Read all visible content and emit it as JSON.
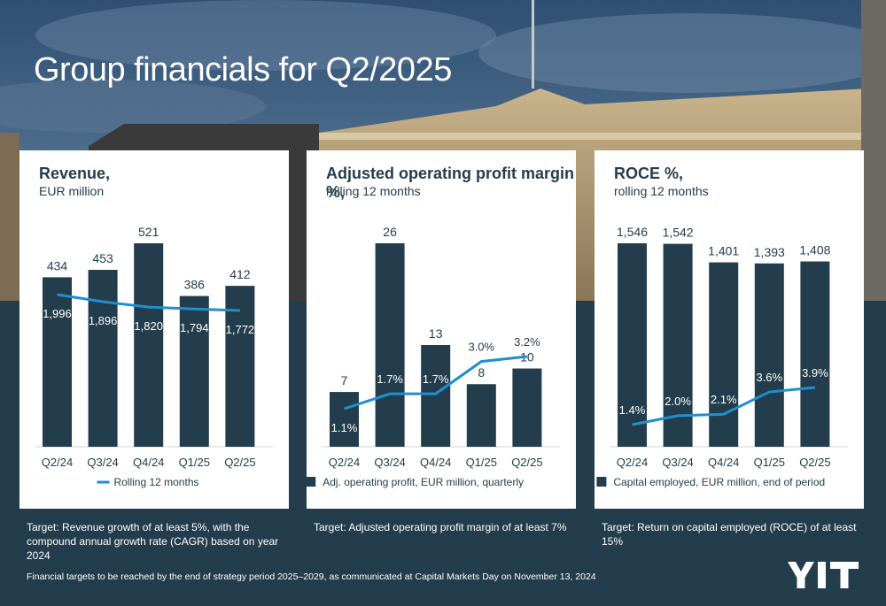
{
  "page": {
    "title": "Group financials for Q2/2025"
  },
  "colors": {
    "dark": "#243d4c",
    "line": "#1e8fd0",
    "white": "#ffffff"
  },
  "chart_data": [
    {
      "type": "bar",
      "title": "Revenue,",
      "subtitle": "EUR million",
      "categories": [
        "Q2/24",
        "Q3/24",
        "Q4/24",
        "Q1/25",
        "Q2/25"
      ],
      "series": [
        {
          "type": "bar",
          "values": [
            434,
            453,
            521,
            386,
            412
          ]
        },
        {
          "name": "Rolling 12 months",
          "type": "line",
          "values": [
            1996,
            1896,
            1820,
            1794,
            1772
          ]
        }
      ],
      "legend": "Rolling 12 months",
      "legend_marker": "line",
      "target": "Target: Revenue growth of at least 5%, with the compound annual growth rate (CAGR) based on year 2024"
    },
    {
      "type": "bar",
      "title": "Adjusted operating profit margin %,",
      "subtitle": "rolling 12 months",
      "categories": [
        "Q2/24",
        "Q3/24",
        "Q4/24",
        "Q1/25",
        "Q2/25"
      ],
      "series": [
        {
          "name": "Adj. operating profit, EUR million, quarterly",
          "type": "bar",
          "values": [
            7,
            26,
            13,
            8,
            10
          ]
        },
        {
          "type": "line",
          "values": [
            1.1,
            1.7,
            1.7,
            3.0,
            3.2
          ],
          "labels": [
            "1.1%",
            "1.7%",
            "1.7%",
            "3.0%",
            "3.2%"
          ]
        }
      ],
      "legend": "Adj. operating profit, EUR million, quarterly",
      "legend_marker": "square",
      "target": "Target: Adjusted operating profit margin of at least 7%"
    },
    {
      "type": "bar",
      "title": "ROCE %,",
      "subtitle": "rolling 12 months",
      "categories": [
        "Q2/24",
        "Q3/24",
        "Q4/24",
        "Q1/25",
        "Q2/25"
      ],
      "series": [
        {
          "name": "Capital employed, EUR million, end of period",
          "type": "bar",
          "values": [
            1546,
            1542,
            1401,
            1393,
            1408
          ],
          "labels": [
            "1,546",
            "1,542",
            "1,401",
            "1,393",
            "1,408"
          ]
        },
        {
          "type": "line",
          "values": [
            1.4,
            2.0,
            2.1,
            3.6,
            3.9
          ],
          "labels": [
            "1.4%",
            "2.0%",
            "2.1%",
            "3.6%",
            "3.9%"
          ]
        }
      ],
      "legend": "Capital employed, EUR million, end of period",
      "legend_marker": "square",
      "target": "Target: Return on capital employed (ROCE) of at least 15%"
    }
  ],
  "footer": {
    "text": "Financial targets to be reached by the end of strategy period 2025–2029, as communicated at Capital Markets Day on November 13, 2024"
  },
  "logo": {
    "text": "YIT"
  }
}
